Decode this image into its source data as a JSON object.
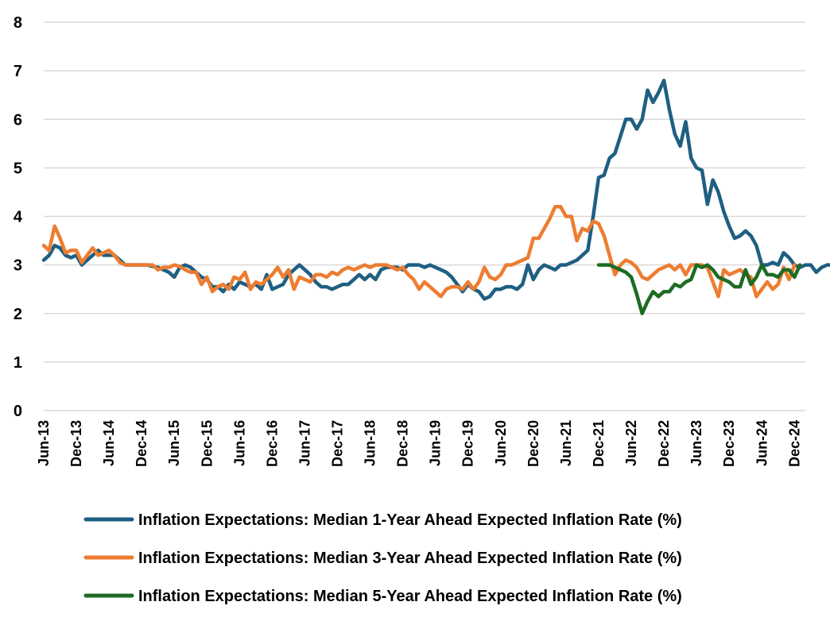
{
  "chart_data": {
    "type": "line",
    "title": "",
    "xlabel": "",
    "ylabel": "",
    "ylim": [
      0,
      8
    ],
    "yticks": [
      0,
      1,
      2,
      3,
      4,
      5,
      6,
      7,
      8
    ],
    "grid": true,
    "legend_position": "bottom",
    "x_start": "Jun-13",
    "x_end": "Feb-25",
    "tick_labels": [
      "Jun-13",
      "Dec-13",
      "Jun-14",
      "Dec-14",
      "Jun-15",
      "Dec-15",
      "Jun-16",
      "Dec-16",
      "Jun-17",
      "Dec-17",
      "Jun-18",
      "Dec-18",
      "Jun-19",
      "Dec-19",
      "Jun-20",
      "Dec-20",
      "Jun-21",
      "Dec-21",
      "Jun-22",
      "Dec-22",
      "Jun-23",
      "Dec-23",
      "Jun-24",
      "Dec-24"
    ],
    "series": [
      {
        "name": "Inflation Expectations: Median 1-Year Ahead Expected Inflation Rate (%)",
        "color": "#1f5f82",
        "start_index": 0,
        "values": [
          3.1,
          3.2,
          3.4,
          3.35,
          3.2,
          3.15,
          3.2,
          3.0,
          3.1,
          3.2,
          3.3,
          3.2,
          3.2,
          3.2,
          3.1,
          3.0,
          3.0,
          3.0,
          3.0,
          3.0,
          2.97,
          2.95,
          2.9,
          2.85,
          2.75,
          2.95,
          3.0,
          2.95,
          2.85,
          2.75,
          2.7,
          2.55,
          2.55,
          2.45,
          2.6,
          2.5,
          2.65,
          2.6,
          2.55,
          2.6,
          2.5,
          2.8,
          2.5,
          2.55,
          2.6,
          2.8,
          2.9,
          3.0,
          2.9,
          2.8,
          2.65,
          2.55,
          2.55,
          2.5,
          2.55,
          2.6,
          2.6,
          2.7,
          2.8,
          2.7,
          2.8,
          2.7,
          2.9,
          2.95,
          2.95,
          2.95,
          2.9,
          3.0,
          3.0,
          3.0,
          2.95,
          3.0,
          2.95,
          2.9,
          2.85,
          2.75,
          2.6,
          2.45,
          2.6,
          2.5,
          2.45,
          2.3,
          2.35,
          2.5,
          2.5,
          2.55,
          2.55,
          2.5,
          2.6,
          3.0,
          2.7,
          2.9,
          3.0,
          2.95,
          2.9,
          3.0,
          3.0,
          3.05,
          3.1,
          3.2,
          3.3,
          4.0,
          4.8,
          4.85,
          5.2,
          5.3,
          5.65,
          6.0,
          6.0,
          5.8,
          6.0,
          6.6,
          6.35,
          6.55,
          6.8,
          6.2,
          5.7,
          5.45,
          5.95,
          5.2,
          5.0,
          4.95,
          4.25,
          4.75,
          4.5,
          4.1,
          3.8,
          3.55,
          3.6,
          3.7,
          3.6,
          3.4,
          3.0,
          3.0,
          3.05,
          3.0,
          3.25,
          3.15,
          3.0,
          2.95,
          3.0,
          3.0,
          2.85,
          2.95,
          3.0,
          3.0
        ]
      },
      {
        "name": "Inflation Expectations: Median 3-Year Ahead Expected Inflation Rate (%)",
        "color": "#ed7d31",
        "start_index": 0,
        "values": [
          3.4,
          3.3,
          3.8,
          3.55,
          3.25,
          3.3,
          3.3,
          3.05,
          3.2,
          3.35,
          3.2,
          3.25,
          3.3,
          3.2,
          3.05,
          3.0,
          3.0,
          3.0,
          3.0,
          3.0,
          3.0,
          2.9,
          2.95,
          2.95,
          3.0,
          2.97,
          2.9,
          2.85,
          2.85,
          2.6,
          2.75,
          2.45,
          2.55,
          2.6,
          2.5,
          2.75,
          2.7,
          2.85,
          2.5,
          2.65,
          2.6,
          2.7,
          2.8,
          2.95,
          2.75,
          2.9,
          2.5,
          2.75,
          2.7,
          2.65,
          2.8,
          2.8,
          2.75,
          2.85,
          2.8,
          2.9,
          2.95,
          2.9,
          2.95,
          3.0,
          2.95,
          3.0,
          3.0,
          3.0,
          2.95,
          2.9,
          2.95,
          2.8,
          2.7,
          2.5,
          2.65,
          2.55,
          2.45,
          2.35,
          2.5,
          2.55,
          2.55,
          2.5,
          2.65,
          2.5,
          2.65,
          2.95,
          2.75,
          2.7,
          2.8,
          3.0,
          3.0,
          3.05,
          3.1,
          3.15,
          3.55,
          3.55,
          3.75,
          3.95,
          4.2,
          4.2,
          4.0,
          4.0,
          3.5,
          3.75,
          3.7,
          3.9,
          3.85,
          3.6,
          3.2,
          2.8,
          3.0,
          3.1,
          3.05,
          2.95,
          2.75,
          2.7,
          2.8,
          2.9,
          2.95,
          3.0,
          2.9,
          3.0,
          2.8,
          3.0,
          3.0,
          3.0,
          2.95,
          2.65,
          2.35,
          2.9,
          2.8,
          2.85,
          2.9,
          2.8,
          2.75,
          2.35,
          2.5,
          2.65,
          2.5,
          2.6,
          2.95,
          2.7,
          3.0
        ]
      },
      {
        "name": "Inflation Expectations: Median 5-Year Ahead Expected Inflation Rate (%)",
        "color": "#1e6b24",
        "start_index": 102,
        "values": [
          3.0,
          3.0,
          3.0,
          2.95,
          2.9,
          2.85,
          2.75,
          2.4,
          2.0,
          2.25,
          2.45,
          2.35,
          2.45,
          2.45,
          2.6,
          2.55,
          2.65,
          2.7,
          3.0,
          2.95,
          3.0,
          2.9,
          2.75,
          2.7,
          2.65,
          2.55,
          2.55,
          2.9,
          2.6,
          2.75,
          3.0,
          2.8,
          2.8,
          2.75,
          2.9,
          2.9,
          2.75,
          3.0
        ]
      }
    ]
  }
}
